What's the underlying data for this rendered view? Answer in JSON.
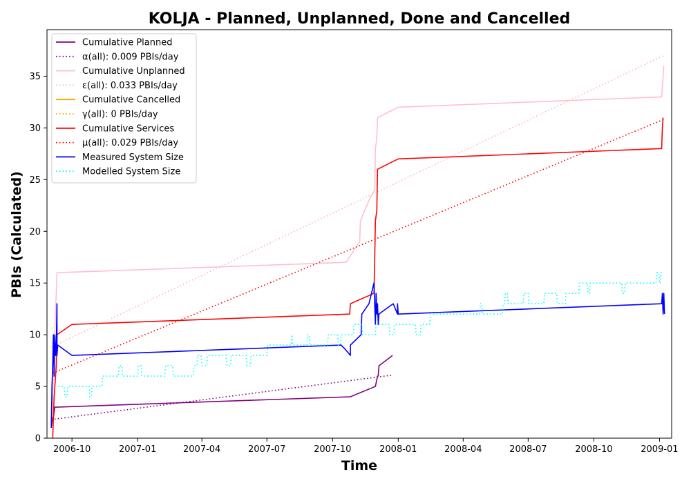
{
  "chart_data": {
    "type": "line",
    "title": "KOLJA - Planned, Unplanned, Done  and Cancelled",
    "xlabel": "Time",
    "ylabel": "PBIs (Calculated)",
    "xlim": [
      "2006-08-27",
      "2009-01-18"
    ],
    "ylim": [
      0,
      39.5
    ],
    "x_ticks": [
      "2006-10",
      "2007-01",
      "2007-04",
      "2007-07",
      "2007-10",
      "2008-01",
      "2008-04",
      "2008-07",
      "2008-10",
      "2009-01"
    ],
    "y_ticks": [
      0,
      5,
      10,
      15,
      20,
      25,
      30,
      35
    ],
    "grid": false,
    "legend_position": "top-left",
    "series": [
      {
        "name": "Cumulative Planned",
        "color": "#800080",
        "style": "solid",
        "points": [
          [
            "2006-09-02",
            1
          ],
          [
            "2006-09-04",
            2
          ],
          [
            "2006-09-05",
            2
          ],
          [
            "2006-09-07",
            3
          ],
          [
            "2006-09-09",
            3
          ],
          [
            "2007-10-26",
            4
          ],
          [
            "2007-11-30",
            5
          ],
          [
            "2007-12-03",
            6
          ],
          [
            "2007-12-04",
            6
          ],
          [
            "2007-12-05",
            7
          ],
          [
            "2007-12-24",
            8
          ]
        ]
      },
      {
        "name": "α(all): 0.009 PBIs/day",
        "color": "#800080",
        "style": "dotted",
        "points": [
          [
            "2006-09-02",
            1.8
          ],
          [
            "2007-12-24",
            6.1
          ]
        ]
      },
      {
        "name": "Cumulative Unplanned",
        "color": "#ffc0cb",
        "style": "solid",
        "points": [
          [
            "2006-09-02",
            1
          ],
          [
            "2006-09-04",
            4
          ],
          [
            "2006-09-06",
            9
          ],
          [
            "2006-09-08",
            12
          ],
          [
            "2006-09-10",
            16
          ],
          [
            "2007-10-20",
            17
          ],
          [
            "2007-11-08",
            19
          ],
          [
            "2007-11-09",
            21
          ],
          [
            "2007-11-21",
            23
          ],
          [
            "2007-11-29",
            24
          ],
          [
            "2007-11-30",
            28
          ],
          [
            "2007-12-02",
            29
          ],
          [
            "2007-12-03",
            31
          ],
          [
            "2008-01-01",
            32
          ],
          [
            "2009-01-04",
            33
          ],
          [
            "2009-01-05",
            34
          ],
          [
            "2009-01-06",
            35
          ],
          [
            "2009-01-07",
            36
          ]
        ]
      },
      {
        "name": "ε(all): 0.033 PBIs/day",
        "color": "#ffb6c1",
        "style": "dotted",
        "points": [
          [
            "2006-09-02",
            8.8
          ],
          [
            "2009-01-07",
            37
          ]
        ]
      },
      {
        "name": "Cumulative Cancelled",
        "color": "#ffa500",
        "style": "solid",
        "points": []
      },
      {
        "name": "γ(all): 0 PBIs/day",
        "color": "#ffa500",
        "style": "dotted",
        "points": []
      },
      {
        "name": "Cumulative Services",
        "color": "#ff0000",
        "style": "solid",
        "points": [
          [
            "2006-09-04",
            0
          ],
          [
            "2006-09-05",
            2
          ],
          [
            "2006-09-06",
            4
          ],
          [
            "2006-09-07",
            5
          ],
          [
            "2006-09-08",
            6
          ],
          [
            "2006-09-09",
            7
          ],
          [
            "2006-09-10",
            10
          ],
          [
            "2006-10-01",
            11
          ],
          [
            "2007-10-25",
            12
          ],
          [
            "2007-10-26",
            13
          ],
          [
            "2007-11-28",
            14
          ],
          [
            "2007-11-29",
            17
          ],
          [
            "2007-11-30",
            21
          ],
          [
            "2007-12-02",
            22
          ],
          [
            "2007-12-03",
            26
          ],
          [
            "2008-01-01",
            27
          ],
          [
            "2009-01-04",
            28
          ],
          [
            "2009-01-05",
            30
          ],
          [
            "2009-01-06",
            31
          ]
        ]
      },
      {
        "name": "μ(all): 0.029 PBIs/day",
        "color": "#ff0000",
        "style": "dotted",
        "points": [
          [
            "2006-09-04",
            6.3
          ],
          [
            "2009-01-06",
            30.8
          ]
        ]
      },
      {
        "name": "Measured System Size",
        "color": "#0000ff",
        "style": "solid",
        "points": [
          [
            "2006-09-02",
            1
          ],
          [
            "2006-09-03",
            5
          ],
          [
            "2006-09-04",
            7
          ],
          [
            "2006-09-05",
            10
          ],
          [
            "2006-09-06",
            6
          ],
          [
            "2006-09-07",
            10
          ],
          [
            "2006-09-08",
            8
          ],
          [
            "2006-09-09",
            9
          ],
          [
            "2006-09-10",
            13
          ],
          [
            "2006-09-10",
            8
          ],
          [
            "2006-09-11",
            9
          ],
          [
            "2006-10-01",
            8
          ],
          [
            "2007-10-13",
            9
          ],
          [
            "2007-10-20",
            8.5
          ],
          [
            "2007-10-26",
            8
          ],
          [
            "2007-10-26",
            9
          ],
          [
            "2007-11-10",
            10
          ],
          [
            "2007-11-11",
            12
          ],
          [
            "2007-11-21",
            13
          ],
          [
            "2007-11-28",
            15
          ],
          [
            "2007-11-30",
            11
          ],
          [
            "2007-12-01",
            14
          ],
          [
            "2007-12-02",
            12
          ],
          [
            "2007-12-03",
            13
          ],
          [
            "2007-12-04",
            11
          ],
          [
            "2007-12-05",
            12
          ],
          [
            "2007-12-25",
            13
          ],
          [
            "2007-12-31",
            12
          ],
          [
            "2007-12-31",
            13
          ],
          [
            "2008-01-01",
            12
          ],
          [
            "2009-01-04",
            13
          ],
          [
            "2009-01-05",
            14
          ],
          [
            "2009-01-06",
            12
          ],
          [
            "2009-01-07",
            14
          ],
          [
            "2009-01-08",
            12
          ]
        ]
      },
      {
        "name": "Modelled System Size",
        "color": "#00ffff",
        "style": "dotted",
        "points": [
          [
            "2006-09-12",
            5
          ],
          [
            "2006-09-20",
            5
          ],
          [
            "2006-09-21",
            4
          ],
          [
            "2006-09-24",
            4
          ],
          [
            "2006-09-25",
            5
          ],
          [
            "2006-10-25",
            5
          ],
          [
            "2006-10-26",
            4
          ],
          [
            "2006-10-28",
            4
          ],
          [
            "2006-10-29",
            5
          ],
          [
            "2006-11-12",
            5
          ],
          [
            "2006-11-13",
            6
          ],
          [
            "2006-12-05",
            6
          ],
          [
            "2006-12-06",
            7
          ],
          [
            "2006-12-10",
            7
          ],
          [
            "2006-12-11",
            6
          ],
          [
            "2007-01-01",
            6
          ],
          [
            "2007-01-02",
            7
          ],
          [
            "2007-01-06",
            7
          ],
          [
            "2007-01-07",
            6
          ],
          [
            "2007-02-08",
            6
          ],
          [
            "2007-02-09",
            7
          ],
          [
            "2007-02-19",
            7
          ],
          [
            "2007-02-20",
            6
          ],
          [
            "2007-03-20",
            6
          ],
          [
            "2007-03-21",
            7
          ],
          [
            "2007-03-25",
            7
          ],
          [
            "2007-03-26",
            8
          ],
          [
            "2007-03-31",
            8
          ],
          [
            "2007-04-01",
            7
          ],
          [
            "2007-04-08",
            7
          ],
          [
            "2007-04-09",
            8
          ],
          [
            "2007-05-05",
            8
          ],
          [
            "2007-05-06",
            7
          ],
          [
            "2007-05-11",
            7
          ],
          [
            "2007-05-12",
            8
          ],
          [
            "2007-06-02",
            8
          ],
          [
            "2007-06-03",
            7
          ],
          [
            "2007-06-08",
            7
          ],
          [
            "2007-06-09",
            8
          ],
          [
            "2007-07-01",
            8
          ],
          [
            "2007-07-02",
            9
          ],
          [
            "2007-08-04",
            9
          ],
          [
            "2007-08-05",
            10
          ],
          [
            "2007-08-06",
            9
          ],
          [
            "2007-08-26",
            9
          ],
          [
            "2007-08-27",
            10
          ],
          [
            "2007-08-29",
            10
          ],
          [
            "2007-08-30",
            9
          ],
          [
            "2007-09-24",
            9
          ],
          [
            "2007-09-25",
            10
          ],
          [
            "2007-10-08",
            10
          ],
          [
            "2007-10-09",
            9
          ],
          [
            "2007-10-12",
            9
          ],
          [
            "2007-10-13",
            10
          ],
          [
            "2007-10-30",
            10
          ],
          [
            "2007-10-31",
            11
          ],
          [
            "2007-11-11",
            11
          ],
          [
            "2007-11-12",
            10
          ],
          [
            "2007-11-30",
            10
          ],
          [
            "2007-12-01",
            11
          ],
          [
            "2007-12-19",
            11
          ],
          [
            "2007-12-20",
            10
          ],
          [
            "2007-12-26",
            10
          ],
          [
            "2007-12-27",
            11
          ],
          [
            "2008-01-25",
            11
          ],
          [
            "2008-01-26",
            10
          ],
          [
            "2008-02-01",
            10
          ],
          [
            "2008-02-02",
            11
          ],
          [
            "2008-02-14",
            11
          ],
          [
            "2008-02-15",
            12
          ],
          [
            "2008-04-24",
            12
          ],
          [
            "2008-04-25",
            13
          ],
          [
            "2008-04-27",
            13
          ],
          [
            "2008-04-28",
            12
          ],
          [
            "2008-05-26",
            12
          ],
          [
            "2008-05-27",
            13
          ],
          [
            "2008-05-29",
            13
          ],
          [
            "2008-05-30",
            14
          ],
          [
            "2008-06-02",
            14
          ],
          [
            "2008-06-03",
            13
          ],
          [
            "2008-06-24",
            13
          ],
          [
            "2008-06-25",
            14
          ],
          [
            "2008-07-01",
            14
          ],
          [
            "2008-07-02",
            13
          ],
          [
            "2008-07-23",
            13
          ],
          [
            "2008-07-24",
            14
          ],
          [
            "2008-08-10",
            14
          ],
          [
            "2008-08-11",
            13
          ],
          [
            "2008-08-22",
            13
          ],
          [
            "2008-08-23",
            14
          ],
          [
            "2008-09-10",
            14
          ],
          [
            "2008-09-11",
            15
          ],
          [
            "2008-09-22",
            15
          ],
          [
            "2008-09-23",
            14
          ],
          [
            "2008-09-25",
            14
          ],
          [
            "2008-09-26",
            15
          ],
          [
            "2008-11-09",
            15
          ],
          [
            "2008-11-10",
            14
          ],
          [
            "2008-11-13",
            14
          ],
          [
            "2008-11-14",
            15
          ],
          [
            "2008-12-27",
            15
          ],
          [
            "2008-12-28",
            16
          ],
          [
            "2008-12-31",
            16
          ],
          [
            "2009-01-01",
            15
          ],
          [
            "2009-01-02",
            15
          ],
          [
            "2009-01-03",
            16
          ],
          [
            "2009-01-07",
            16
          ]
        ]
      }
    ]
  }
}
